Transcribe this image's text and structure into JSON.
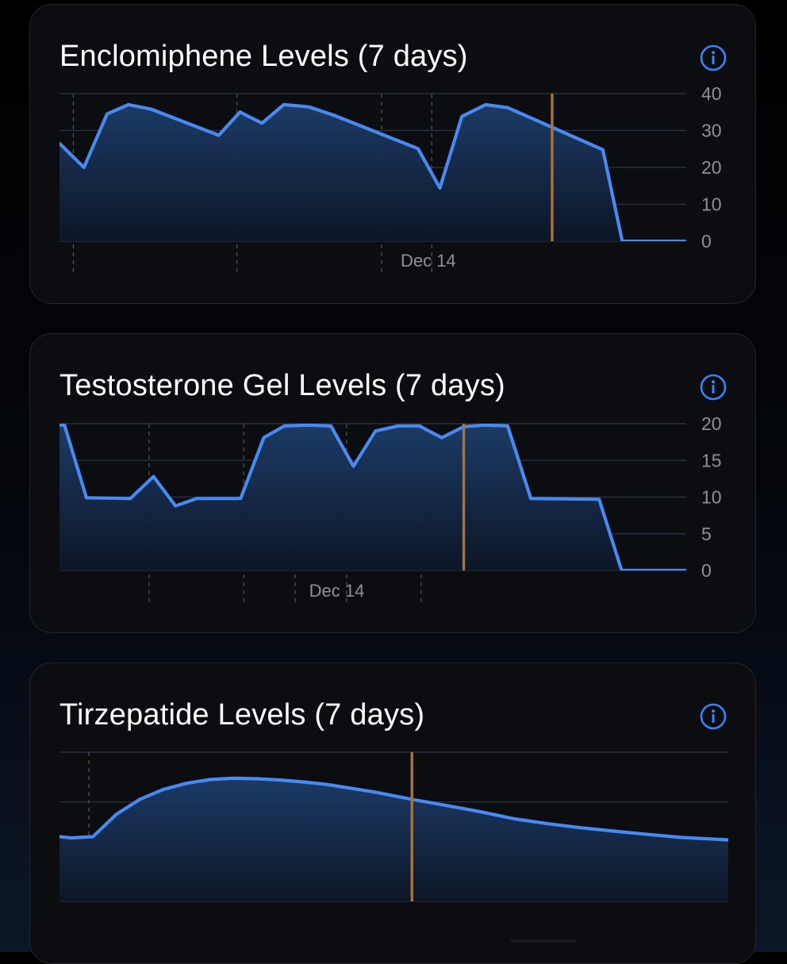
{
  "colors": {
    "line": "#4a8af0",
    "fill_top": "#1d3d6a",
    "fill_bottom": "#0c1627",
    "now_marker": "#a8733a",
    "grid": "#2e3442",
    "dashed": "#4a4f59",
    "axis_text": "#8e9099",
    "accent": "#3b82f6"
  },
  "chart_data": [
    {
      "type": "area",
      "title": "Enclomiphene Levels (7 days)",
      "info_icon": "info-circle-icon",
      "ylim": [
        0,
        40
      ],
      "y_ticks": [
        0,
        10,
        20,
        30,
        40
      ],
      "y_tick_labels": [
        "0",
        "10",
        "20",
        "30",
        "40"
      ],
      "x_range": [
        0,
        100
      ],
      "x_date_labels": [
        {
          "x": 52.4,
          "label": "Dec 14"
        }
      ],
      "x_dashed_gridlines": [
        2.2,
        28.3,
        51.4,
        59.4
      ],
      "now_marker_x": 78.6,
      "points": [
        [
          0,
          26.5
        ],
        [
          3.9,
          20
        ],
        [
          7.6,
          34.5
        ],
        [
          11.0,
          37
        ],
        [
          14.6,
          35.8
        ],
        [
          25.4,
          28.7
        ],
        [
          28.8,
          35
        ],
        [
          32.3,
          32
        ],
        [
          35.8,
          37
        ],
        [
          39.8,
          36.4
        ],
        [
          43.7,
          34.2
        ],
        [
          57.2,
          25.1
        ],
        [
          60.7,
          14.4
        ],
        [
          64.2,
          33.8
        ],
        [
          68.0,
          37
        ],
        [
          71.5,
          36.2
        ],
        [
          86.7,
          24.8
        ],
        [
          89.8,
          0
        ],
        [
          100,
          0
        ]
      ]
    },
    {
      "type": "area",
      "title": "Testosterone Gel Levels (7 days)",
      "info_icon": "info-circle-icon",
      "ylim": [
        0,
        20
      ],
      "y_ticks": [
        0,
        5,
        10,
        15,
        20
      ],
      "y_tick_labels": [
        "0",
        "5",
        "10",
        "15",
        "20"
      ],
      "x_range": [
        0,
        100
      ],
      "x_date_labels": [
        {
          "x": 37.8,
          "label": "Dec 14"
        }
      ],
      "x_dashed_gridlines": [
        14.3,
        29.4,
        37.6,
        45.8,
        57.7
      ],
      "now_marker_x": 64.5,
      "points": [
        [
          0,
          19.8
        ],
        [
          0.8,
          19.8
        ],
        [
          4.3,
          9.9
        ],
        [
          11.3,
          9.8
        ],
        [
          15.0,
          12.8
        ],
        [
          18.5,
          8.8
        ],
        [
          21.9,
          9.8
        ],
        [
          28.9,
          9.8
        ],
        [
          32.6,
          18.1
        ],
        [
          35.9,
          19.7
        ],
        [
          39.6,
          19.8
        ],
        [
          43.3,
          19.7
        ],
        [
          46.9,
          14.2
        ],
        [
          50.4,
          19
        ],
        [
          54.0,
          19.7
        ],
        [
          57.4,
          19.7
        ],
        [
          61.0,
          18.1
        ],
        [
          64.5,
          19.6
        ],
        [
          67.9,
          19.8
        ],
        [
          71.5,
          19.7
        ],
        [
          75.2,
          9.8
        ],
        [
          86.1,
          9.7
        ],
        [
          89.7,
          0
        ],
        [
          100,
          0
        ]
      ]
    },
    {
      "type": "area",
      "title": "Tirzepatide Levels (7 days)",
      "info_icon": "info-circle-icon",
      "ylim": [
        0,
        6
      ],
      "y_ticks": [
        0,
        2,
        4,
        6
      ],
      "y_tick_labels": [],
      "x_range": [
        0,
        100
      ],
      "x_date_labels": [],
      "x_dashed_gridlines": [
        4.4
      ],
      "now_marker_x": 52.7,
      "points": [
        [
          0,
          2.6
        ],
        [
          1.7,
          2.55
        ],
        [
          5,
          2.6
        ],
        [
          8.5,
          3.5
        ],
        [
          12,
          4.1
        ],
        [
          15.5,
          4.5
        ],
        [
          19,
          4.75
        ],
        [
          22.5,
          4.9
        ],
        [
          26,
          4.95
        ],
        [
          29.5,
          4.93
        ],
        [
          33,
          4.88
        ],
        [
          36.5,
          4.8
        ],
        [
          40,
          4.7
        ],
        [
          43.5,
          4.55
        ],
        [
          47,
          4.4
        ],
        [
          52.7,
          4.1
        ],
        [
          58,
          3.85
        ],
        [
          63,
          3.6
        ],
        [
          68,
          3.32
        ],
        [
          73,
          3.12
        ],
        [
          78,
          2.96
        ],
        [
          83,
          2.82
        ],
        [
          88,
          2.69
        ],
        [
          93,
          2.57
        ],
        [
          100,
          2.47
        ]
      ]
    }
  ]
}
